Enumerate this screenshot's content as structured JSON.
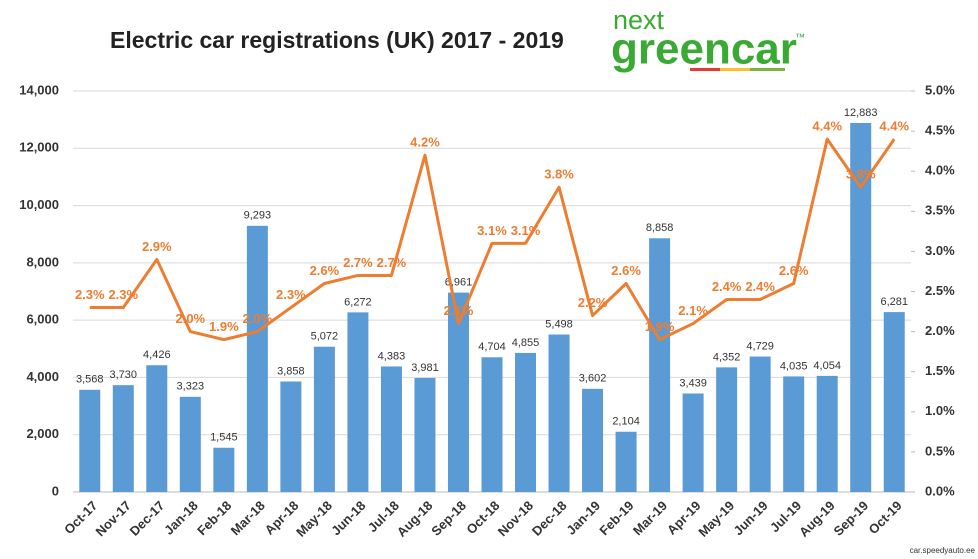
{
  "chart_data": {
    "type": "bar",
    "title": "Electric car registrations (UK) 2017 - 2019",
    "logo": {
      "top": "next",
      "bottom": "greencar",
      "mark": "™"
    },
    "watermark": "car.speedyauto.ee",
    "categories": [
      "Oct-17",
      "Nov-17",
      "Dec-17",
      "Jan-18",
      "Feb-18",
      "Mar-18",
      "Apr-18",
      "May-18",
      "Jun-18",
      "Jul-18",
      "Aug-18",
      "Sep-18",
      "Oct-18",
      "Nov-18",
      "Dec-18",
      "Jan-19",
      "Feb-19",
      "Mar-19",
      "Apr-19",
      "May-19",
      "Jun-19",
      "Jul-19",
      "Aug-19",
      "Sep-19",
      "Oct-19"
    ],
    "series": [
      {
        "type": "bar",
        "color": "#5b9bd5",
        "values": [
          3568,
          3730,
          4426,
          3323,
          1545,
          9293,
          3858,
          5072,
          6272,
          4383,
          3981,
          6961,
          4704,
          4855,
          5498,
          3602,
          2104,
          8858,
          3439,
          4352,
          4729,
          4035,
          4054,
          12883,
          6281
        ],
        "value_labels": [
          "3,568",
          "3,730",
          "4,426",
          "3,323",
          "1,545",
          "9,293",
          "3,858",
          "5,072",
          "6,272",
          "4,383",
          "3,981",
          "6,961",
          "4,704",
          "4,855",
          "5,498",
          "3,602",
          "2,104",
          "8,858",
          "3,439",
          "4,352",
          "4,729",
          "4,035",
          "4,054",
          "12,883",
          "6,281"
        ]
      },
      {
        "type": "line",
        "axis": "y2",
        "color": "#ed7d31",
        "values": [
          2.3,
          2.3,
          2.9,
          2.0,
          1.9,
          2.0,
          2.3,
          2.6,
          2.7,
          2.7,
          4.2,
          2.1,
          3.1,
          3.1,
          3.8,
          2.2,
          2.6,
          1.9,
          2.1,
          2.4,
          2.4,
          2.6,
          4.4,
          3.8,
          4.4
        ],
        "value_labels": [
          "2.3%",
          "2.3%",
          "2.9%",
          "2.0%",
          "1.9%",
          "2.0%",
          "2.3%",
          "2.6%",
          "2.7%",
          "2.7%",
          "4.2%",
          "2.1%",
          "3.1%",
          "3.1%",
          "3.8%",
          "2.2%",
          "2.6%",
          "1.9%",
          "2.1%",
          "2.4%",
          "2.4%",
          "2.6%",
          "4.4%",
          "3.8%",
          "4.4%"
        ]
      }
    ],
    "ylim": [
      0,
      14000
    ],
    "yticks": [
      0,
      {
        "value": 2000,
        "label": "2,000"
      },
      {
        "value": 4000,
        "label": "4,000"
      },
      {
        "value": 6000,
        "label": "6,000"
      },
      {
        "value": 8000,
        "label": "8,000"
      },
      {
        "value": 10000,
        "label": "10,000"
      },
      {
        "value": 12000,
        "label": "12,000"
      },
      {
        "value": 14000,
        "label": "14,000"
      }
    ],
    "y2lim": [
      0,
      5
    ],
    "y2ticks": [
      {
        "value": 0,
        "label": "0.0%"
      },
      {
        "value": 0.5,
        "label": "0.5%"
      },
      {
        "value": 1,
        "label": "1.0%"
      },
      {
        "value": 1.5,
        "label": "1.5%"
      },
      {
        "value": 2,
        "label": "2.0%"
      },
      {
        "value": 2.5,
        "label": "2.5%"
      },
      {
        "value": 3,
        "label": "3.0%"
      },
      {
        "value": 3.5,
        "label": "3.5%"
      },
      {
        "value": 4,
        "label": "4.0%"
      },
      {
        "value": 4.5,
        "label": "4.5%"
      },
      {
        "value": 5,
        "label": "5.0%"
      }
    ],
    "grid": true
  }
}
